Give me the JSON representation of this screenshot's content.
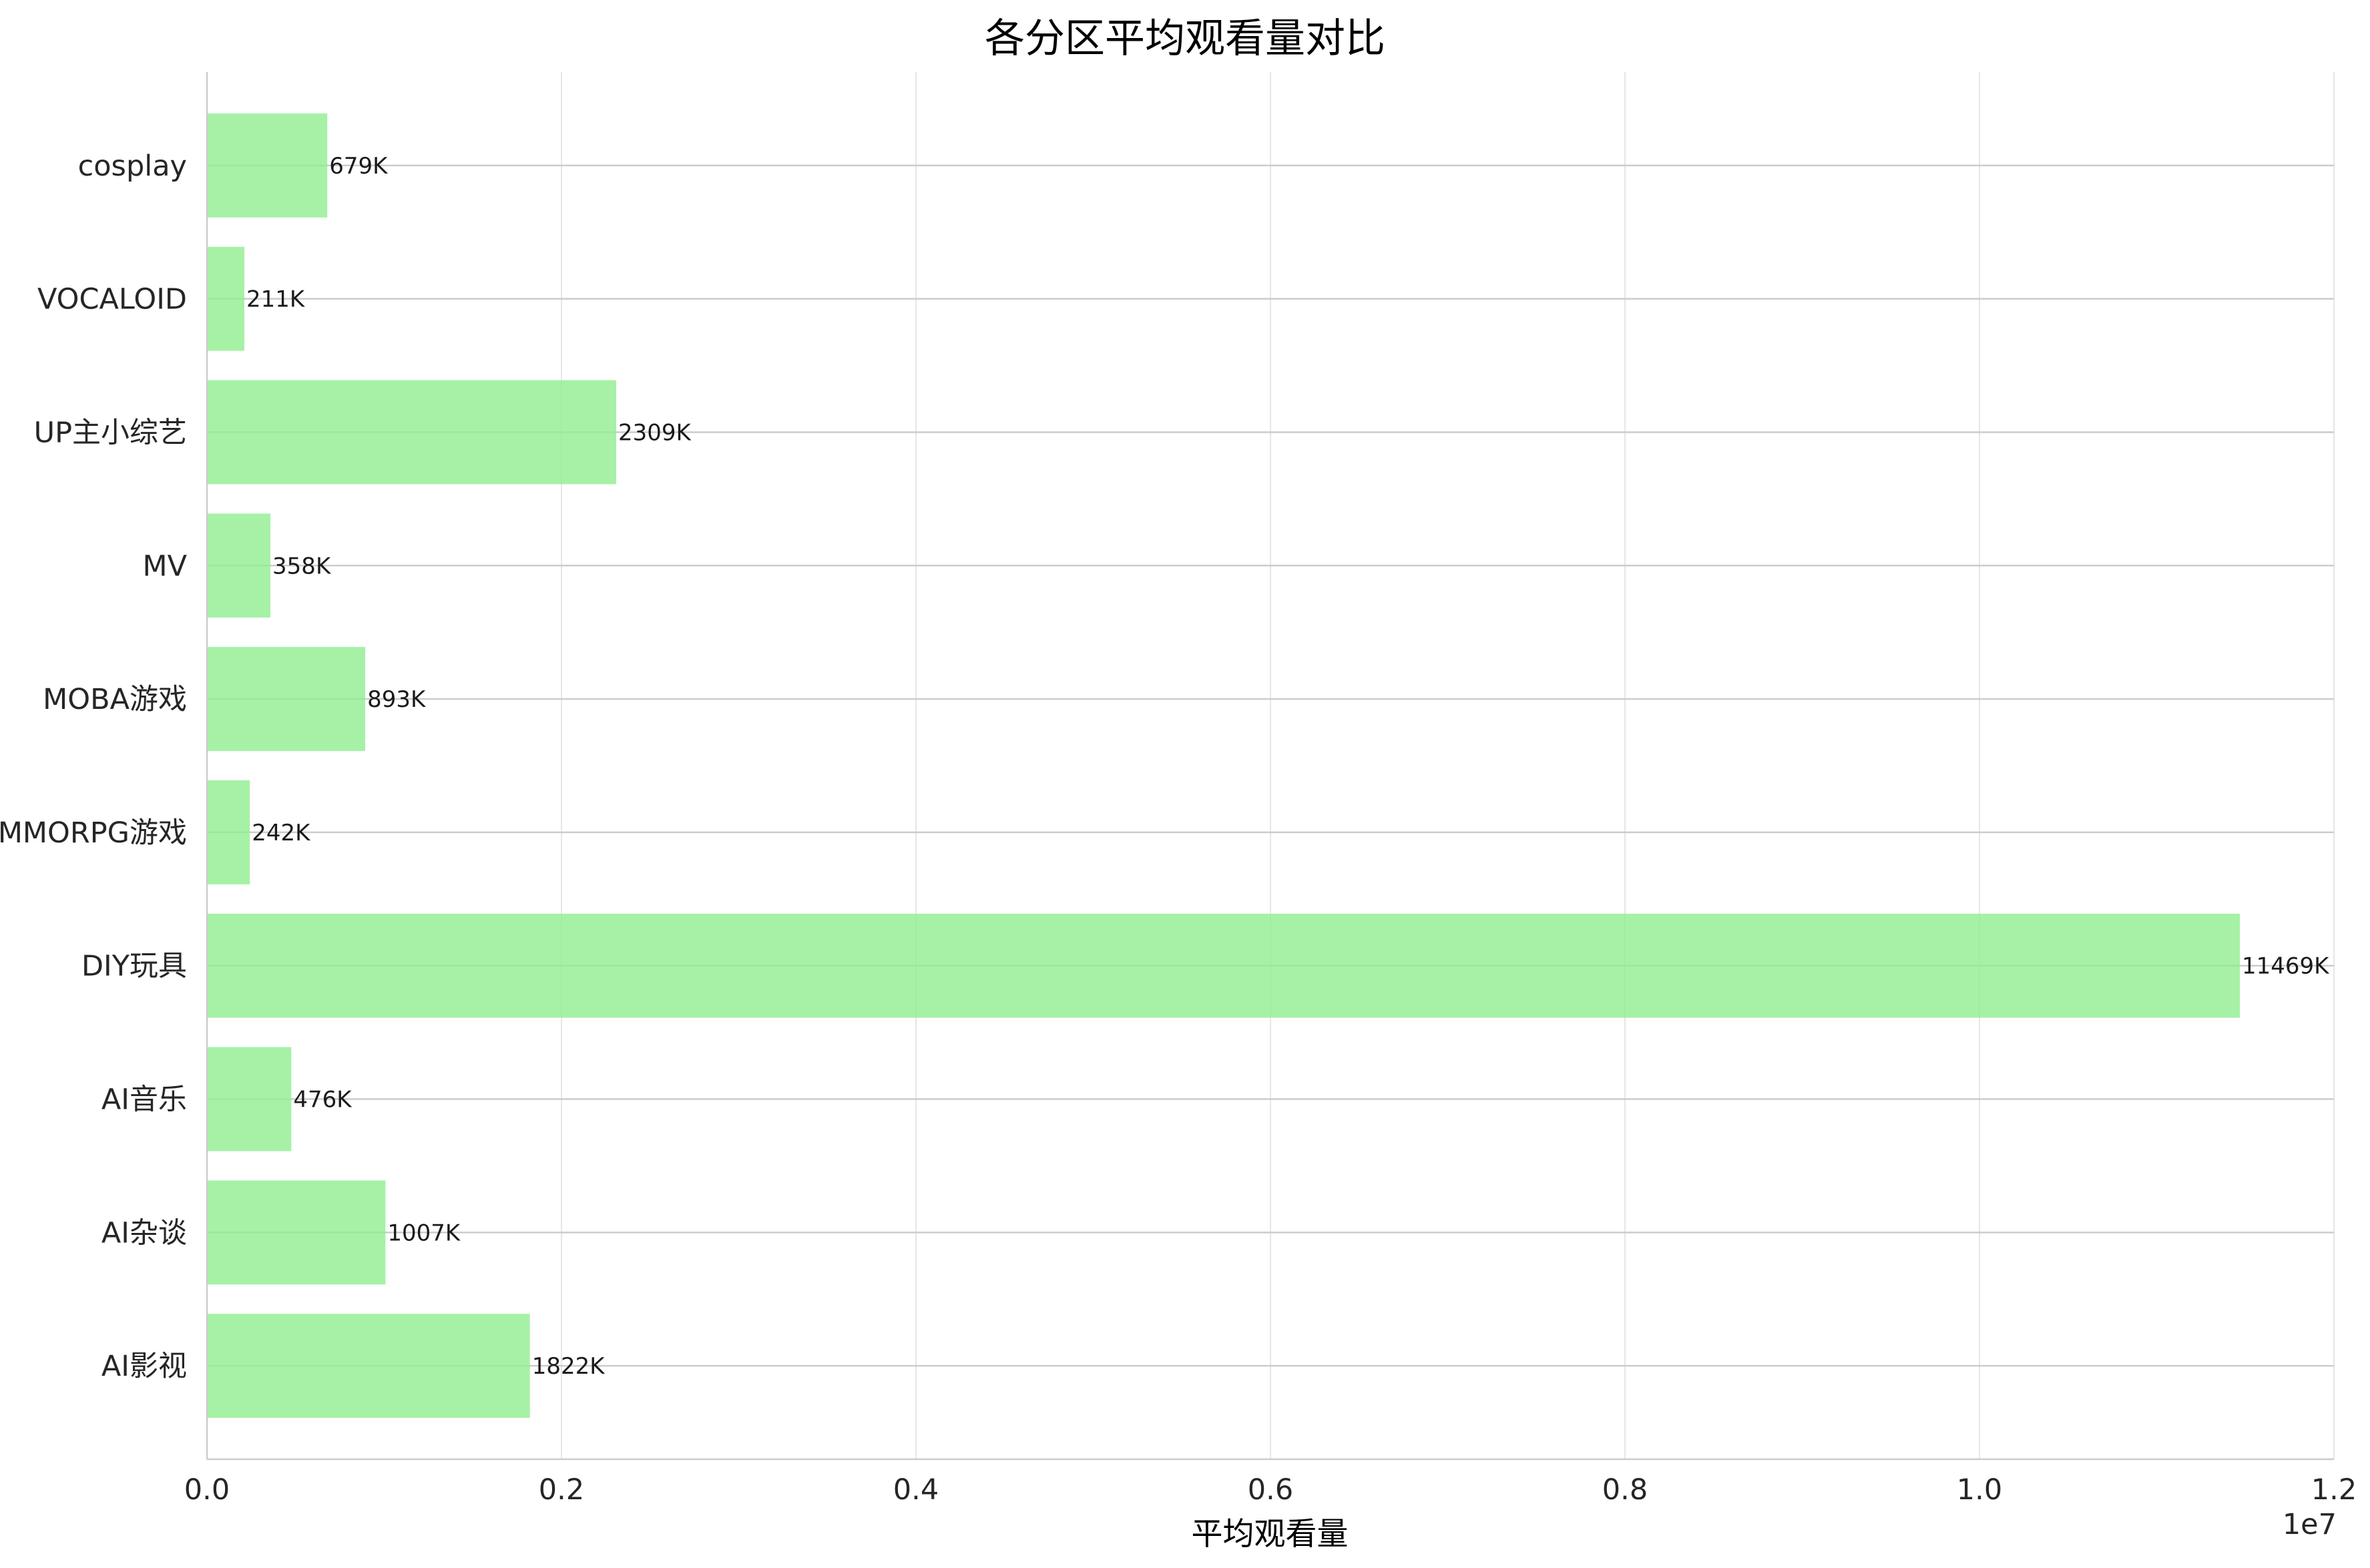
{
  "chart_data": {
    "type": "bar",
    "orientation": "horizontal",
    "title": "各分区平均观看量对比",
    "xlabel": "平均观看量",
    "ylabel": "",
    "x_offset_text": "1e7",
    "xlim": [
      0,
      12000000
    ],
    "xticks": [
      0,
      2000000,
      4000000,
      6000000,
      8000000,
      10000000,
      12000000
    ],
    "xtick_labels": [
      "0.0",
      "0.2",
      "0.4",
      "0.6",
      "0.8",
      "1.0",
      "1.2"
    ],
    "categories": [
      "cosplay",
      "VOCALOID",
      "UP主小综艺",
      "MV",
      "MOBA游戏",
      "MMORPG游戏",
      "DIY玩具",
      "AI音乐",
      "AI杂谈",
      "AI影视"
    ],
    "values": [
      679000,
      211000,
      2309000,
      358000,
      893000,
      242000,
      11469000,
      476000,
      1007000,
      1822000
    ],
    "data_labels": [
      "679K",
      "211K",
      "2309K",
      "358K",
      "893K",
      "242K",
      "11469K",
      "476K",
      "1007K",
      "1822K"
    ],
    "bar_color": "#90ee90",
    "grid": true,
    "legend": "none"
  }
}
